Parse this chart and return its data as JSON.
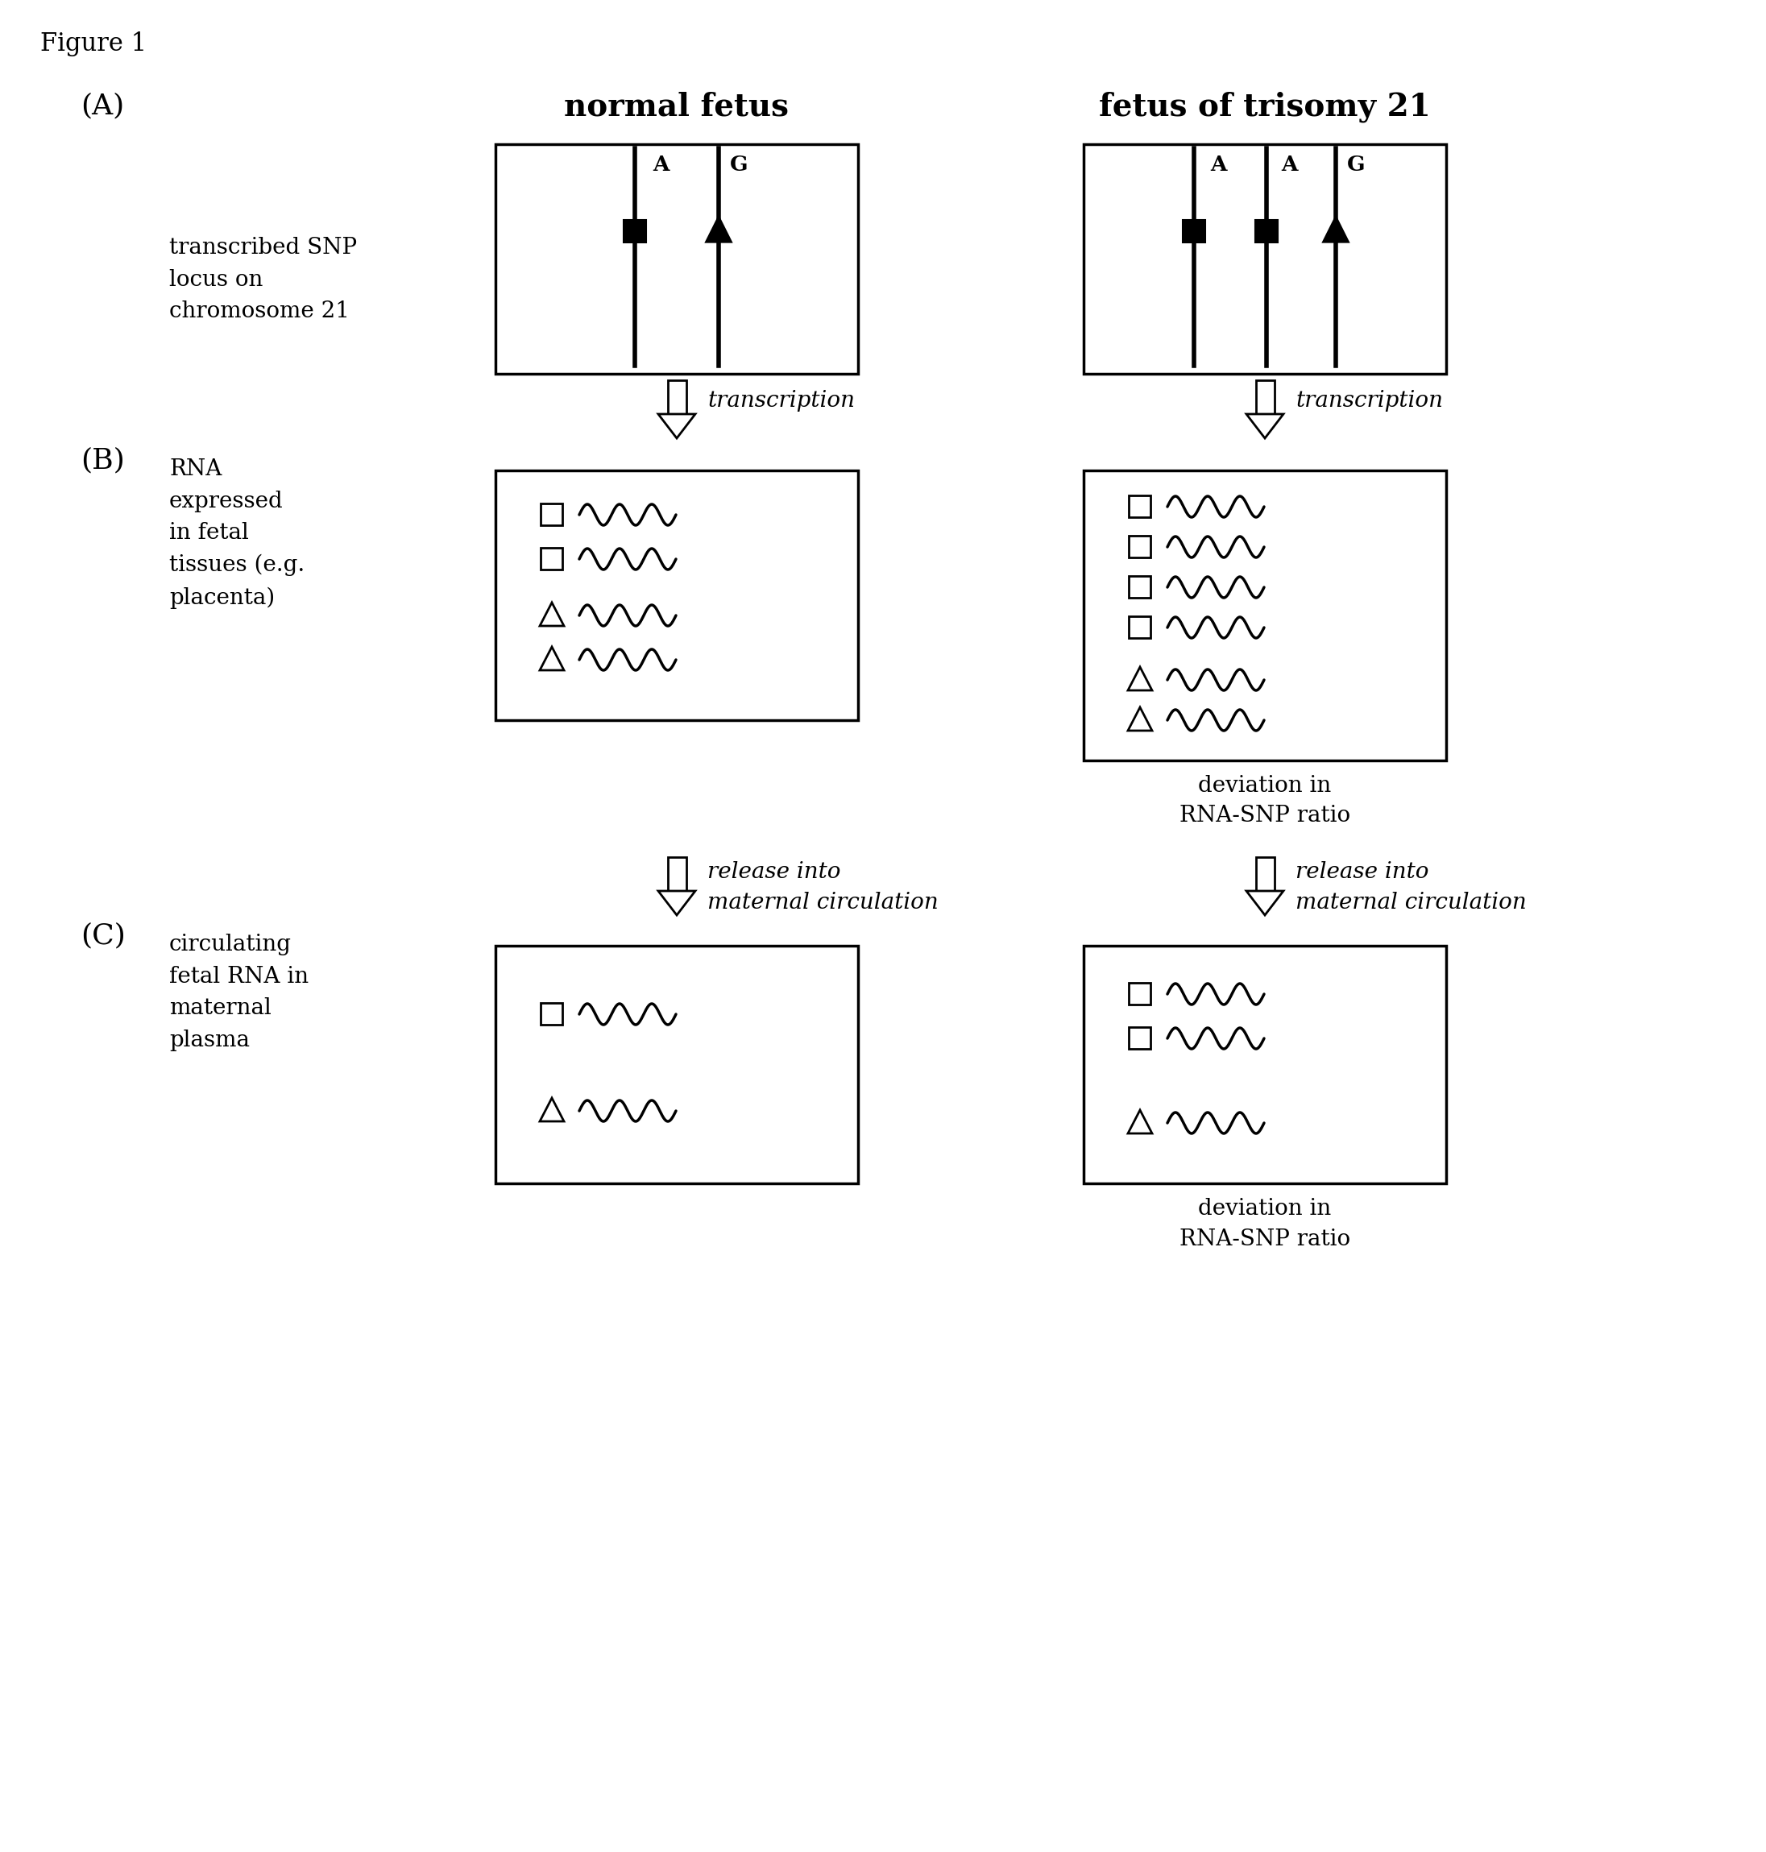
{
  "figure_label": "Figure 1",
  "panel_A_label": "(A)",
  "panel_B_label": "(B)",
  "panel_C_label": "(C)",
  "col1_title": "normal fetus",
  "col2_title": "fetus of trisomy 21",
  "transcription_label": "transcription",
  "release_label": "release into\nmaternal circulation",
  "deviation_label": "deviation in\nRNA-SNP ratio",
  "rna_label": "RNA\nexpressed\nin fetal\ntissues (e.g.\nplacenta)",
  "circulating_label": "circulating\nfetal RNA in\nmaternal\nplasma",
  "snp_label": "transcribed SNP\nlocus on\nchromosome 21",
  "bg_color": "#ffffff",
  "text_color": "#000000"
}
